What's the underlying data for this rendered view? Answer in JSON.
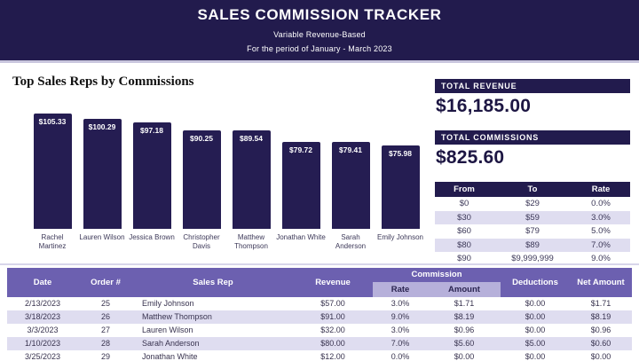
{
  "header": {
    "title": "SALES COMMISSION TRACKER",
    "subtitle": "Variable Revenue-Based",
    "period": "For the period of January - March 2023"
  },
  "chart_data": {
    "type": "bar",
    "title": "Top Sales Reps by Commissions",
    "categories": [
      "Rachel Martinez",
      "Lauren Wilson",
      "Jessica Brown",
      "Christopher Davis",
      "Matthew Thompson",
      "Jonathan White",
      "Sarah Anderson",
      "Emily Johnson"
    ],
    "values": [
      105.33,
      100.29,
      97.18,
      90.25,
      89.54,
      79.72,
      79.41,
      75.98
    ],
    "value_labels": [
      "$105.33",
      "$100.29",
      "$97.18",
      "$90.25",
      "$89.54",
      "$79.72",
      "$79.41",
      "$75.98"
    ],
    "xlabel": "",
    "ylabel": "",
    "ylim": [
      0,
      105.33
    ],
    "grid": false,
    "legend": "none",
    "bar_color": "#251d52",
    "label_color": "#ffffff"
  },
  "summary": {
    "total_revenue_label": "TOTAL REVENUE",
    "total_revenue_value": "$16,185.00",
    "total_commissions_label": "TOTAL COMMISSIONS",
    "total_commissions_value": "$825.60"
  },
  "rate_table": {
    "headers": [
      "From",
      "To",
      "Rate"
    ],
    "rows": [
      [
        "$0",
        "$29",
        "0.0%"
      ],
      [
        "$30",
        "$59",
        "3.0%"
      ],
      [
        "$60",
        "$79",
        "5.0%"
      ],
      [
        "$80",
        "$89",
        "7.0%"
      ],
      [
        "$90",
        "$9,999,999",
        "9.0%"
      ]
    ]
  },
  "orders_table": {
    "headers": {
      "date": "Date",
      "order": "Order #",
      "sales_rep": "Sales Rep",
      "revenue": "Revenue",
      "commission_group": "Commission",
      "rate": "Rate",
      "amount": "Amount",
      "deductions": "Deductions",
      "net_amount": "Net Amount"
    },
    "rows": [
      [
        "2/13/2023",
        "25",
        "Emily Johnson",
        "$57.00",
        "3.0%",
        "$1.71",
        "$0.00",
        "$1.71"
      ],
      [
        "3/18/2023",
        "26",
        "Matthew Thompson",
        "$91.00",
        "9.0%",
        "$8.19",
        "$0.00",
        "$8.19"
      ],
      [
        "3/3/2023",
        "27",
        "Lauren Wilson",
        "$32.00",
        "3.0%",
        "$0.96",
        "$0.00",
        "$0.96"
      ],
      [
        "1/10/2023",
        "28",
        "Sarah Anderson",
        "$80.00",
        "7.0%",
        "$5.60",
        "$5.00",
        "$0.60"
      ],
      [
        "3/25/2023",
        "29",
        "Jonathan White",
        "$12.00",
        "0.0%",
        "$0.00",
        "$0.00",
        "$0.00"
      ]
    ]
  },
  "colors": {
    "header_navy": "#221b4d",
    "bar_navy": "#251d52",
    "table_header_purple": "#6c60b0",
    "sub_header_purple": "#b6b0da",
    "alt_row_lavender": "#dfddf0"
  }
}
